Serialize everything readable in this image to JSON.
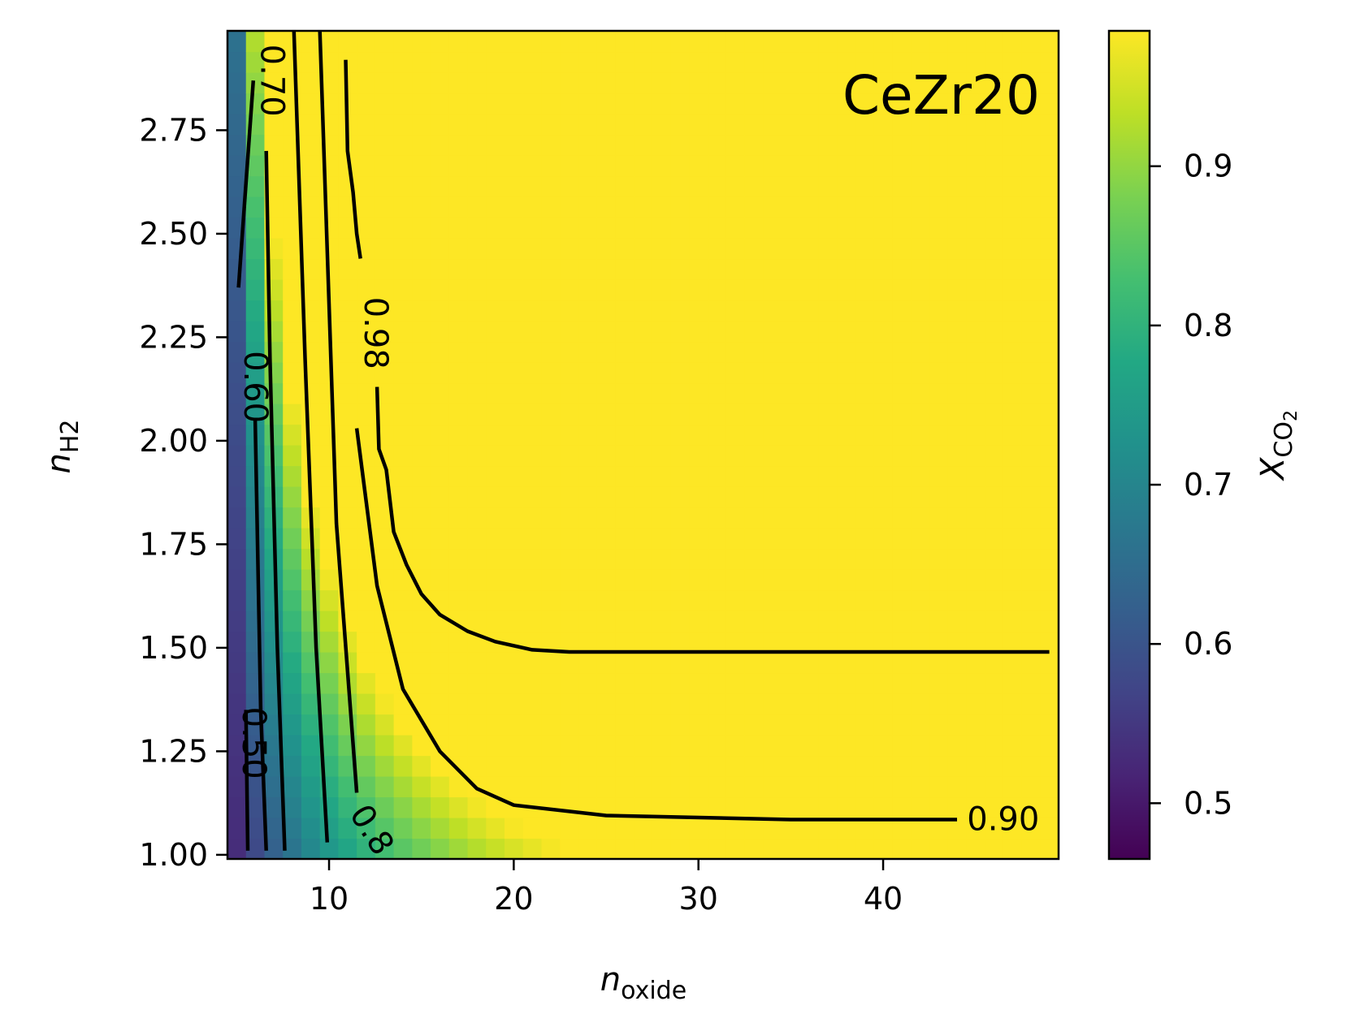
{
  "chart_data": {
    "type": "heatmap",
    "annotation": "CeZr20",
    "xlabel": {
      "base": "n",
      "sub": "oxide"
    },
    "ylabel": {
      "base": "n",
      "sub": "H2"
    },
    "colorbar_label": {
      "base": "X",
      "sub": "CO",
      "subsub": "2"
    },
    "xlim": [
      4.5,
      49.5
    ],
    "ylim": [
      0.99,
      2.99
    ],
    "x_ticks": [
      10,
      20,
      30,
      40
    ],
    "x_tick_labels": [
      "10",
      "20",
      "30",
      "40"
    ],
    "y_ticks": [
      1.0,
      1.25,
      1.5,
      1.75,
      2.0,
      2.25,
      2.5,
      2.75
    ],
    "y_tick_labels": [
      "1.00",
      "1.25",
      "1.50",
      "1.75",
      "2.00",
      "2.25",
      "2.50",
      "2.75"
    ],
    "colorbar": {
      "range": [
        0.465,
        0.985
      ],
      "ticks": [
        0.5,
        0.6,
        0.7,
        0.8,
        0.9
      ],
      "tick_labels": [
        "0.5",
        "0.6",
        "0.7",
        "0.8",
        "0.9"
      ],
      "colormap": "viridis"
    },
    "contours": [
      {
        "level": 0.5,
        "label": "0.50",
        "points": [
          [
            5.6,
            1.01
          ],
          [
            5.5,
            1.35
          ]
        ]
      },
      {
        "level": 0.6,
        "label": "0.60",
        "points": [
          [
            5.1,
            2.37
          ],
          [
            5.9,
            2.87
          ]
        ]
      },
      {
        "level": 0.6,
        "label": "0.60",
        "points": [
          [
            6.6,
            1.01
          ],
          [
            6.3,
            1.35
          ],
          [
            6.0,
            2.05
          ]
        ]
      },
      {
        "level": 0.7,
        "label": "0.70",
        "points": [
          [
            7.6,
            1.01
          ],
          [
            7.2,
            1.5
          ],
          [
            6.8,
            2.2
          ],
          [
            6.6,
            2.7
          ]
        ]
      },
      {
        "level": 0.8,
        "label": "0.8",
        "points": [
          [
            9.9,
            1.03
          ],
          [
            9.3,
            1.5
          ],
          [
            8.7,
            2.2
          ],
          [
            8.1,
            2.99
          ]
        ]
      },
      {
        "level": 0.8,
        "label": "0.8",
        "points": [
          [
            11.5,
            1.15
          ],
          [
            10.4,
            1.8
          ],
          [
            9.5,
            2.99
          ]
        ]
      },
      {
        "level": 0.9,
        "label": "0.90",
        "points": [
          [
            11.5,
            2.03
          ],
          [
            12.6,
            1.65
          ],
          [
            14.0,
            1.4
          ],
          [
            16.0,
            1.25
          ],
          [
            18.0,
            1.16
          ],
          [
            20.0,
            1.12
          ],
          [
            25.0,
            1.095
          ],
          [
            35.0,
            1.085
          ],
          [
            44.0,
            1.085
          ]
        ]
      },
      {
        "level": 0.98,
        "label": "0.98",
        "points": [
          [
            12.6,
            2.13
          ],
          [
            12.7,
            1.98
          ],
          [
            13.1,
            1.93
          ],
          [
            13.5,
            1.78
          ],
          [
            14.2,
            1.7
          ],
          [
            15.0,
            1.63
          ],
          [
            16.0,
            1.58
          ],
          [
            17.5,
            1.54
          ],
          [
            19.0,
            1.515
          ],
          [
            21.0,
            1.495
          ],
          [
            23.0,
            1.49
          ],
          [
            30.0,
            1.49
          ],
          [
            49.0,
            1.49
          ]
        ]
      },
      {
        "level": 0.98,
        "label": "0.98",
        "points": [
          [
            10.9,
            2.92
          ],
          [
            11.0,
            2.7
          ],
          [
            11.3,
            2.6
          ],
          [
            11.5,
            2.5
          ],
          [
            11.7,
            2.44
          ]
        ]
      }
    ],
    "contour_labels": [
      {
        "text": "0.70",
        "x": 6.9,
        "y": 2.87,
        "rotation": 90
      },
      {
        "text": "0.60",
        "x": 6.0,
        "y": 2.13,
        "rotation": 90
      },
      {
        "text": "0.98",
        "x": 12.5,
        "y": 2.26,
        "rotation": 90
      },
      {
        "text": "0.50",
        "x": 5.9,
        "y": 1.27,
        "rotation": 90
      },
      {
        "text": "0.8",
        "x": 12.3,
        "y": 1.06,
        "rotation": 58
      },
      {
        "text": "0.90",
        "x": 46.5,
        "y": 1.085,
        "rotation": 0
      }
    ]
  }
}
